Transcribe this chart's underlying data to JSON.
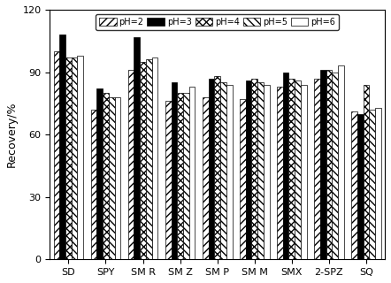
{
  "categories": [
    "SD",
    "SPY",
    "SM R",
    "SM Z",
    "SM P",
    "SM M",
    "SMX",
    "2-SPZ",
    "SQ"
  ],
  "ph_labels": [
    "pH=2",
    "pH=3",
    "pH=4",
    "pH=5",
    "pH=6"
  ],
  "values": {
    "pH=2": [
      100,
      72,
      91,
      76,
      78,
      77,
      83,
      87,
      71
    ],
    "pH=3": [
      108,
      82,
      107,
      85,
      87,
      86,
      90,
      91,
      70
    ],
    "pH=4": [
      97,
      80,
      95,
      80,
      88,
      87,
      87,
      91,
      84
    ],
    "pH=5": [
      97,
      78,
      96,
      80,
      85,
      85,
      86,
      90,
      72
    ],
    "pH=6": [
      98,
      78,
      97,
      83,
      84,
      84,
      84,
      93,
      73
    ]
  },
  "ylim": [
    0,
    120
  ],
  "yticks": [
    0,
    30,
    60,
    90,
    120
  ],
  "ylabel": "Recovery/%",
  "bar_width": 0.16,
  "figsize": [
    4.42,
    3.2
  ],
  "dpi": 100
}
